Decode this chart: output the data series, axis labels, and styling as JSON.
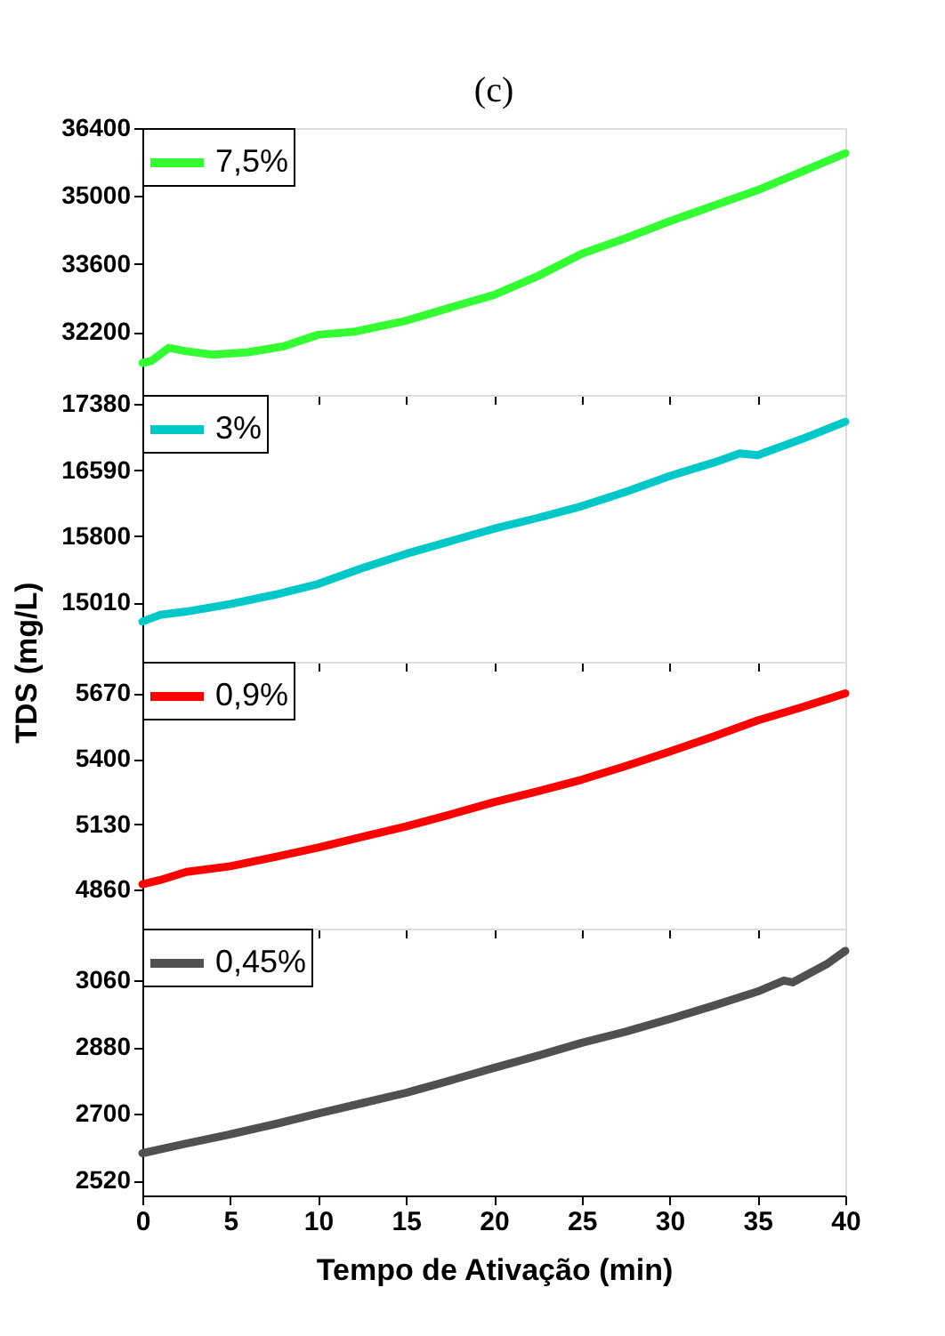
{
  "chart_data": [
    {
      "type": "line",
      "title": "(c)",
      "x": [
        0,
        0.5,
        1.5,
        2.5,
        4,
        6,
        8,
        10,
        12,
        15,
        17.5,
        20,
        22.5,
        25,
        27.5,
        30,
        32.5,
        35,
        37.5,
        40
      ],
      "xlim": [
        0,
        40
      ],
      "xticks": [
        0,
        5,
        10,
        15,
        20,
        25,
        30,
        35,
        40
      ],
      "ylim": [
        30900,
        36400
      ],
      "yticks": [
        32200,
        33600,
        35000,
        36400
      ],
      "tick_labels": "y",
      "legend": "top left",
      "grid": false,
      "series": [
        {
          "name": "7,5%",
          "color": "#33ff33",
          "values": [
            31560,
            31600,
            31870,
            31800,
            31730,
            31780,
            31900,
            32140,
            32200,
            32430,
            32700,
            32960,
            33350,
            33810,
            34130,
            34480,
            34800,
            35120,
            35500,
            35880
          ]
        }
      ]
    },
    {
      "type": "line",
      "ylabel": "TDS (mg/L)",
      "x": [
        0,
        1,
        2.5,
        5,
        7.5,
        10,
        12.5,
        15,
        17.5,
        20,
        22.5,
        25,
        27.5,
        30,
        32.5,
        34,
        35,
        37.5,
        40
      ],
      "xlim": [
        0,
        40
      ],
      "xticks": [
        0,
        5,
        10,
        15,
        20,
        25,
        30,
        35,
        40
      ],
      "ylim": [
        14300,
        17490
      ],
      "yticks": [
        15010,
        15800,
        16590,
        17380
      ],
      "tick_labels": "y",
      "legend": "top left",
      "grid": false,
      "series": [
        {
          "name": "3%",
          "color": "#00c8c8",
          "values": [
            14780,
            14860,
            14900,
            14990,
            15100,
            15230,
            15420,
            15590,
            15740,
            15890,
            16020,
            16160,
            16330,
            16520,
            16680,
            16790,
            16770,
            16960,
            17170
          ]
        }
      ]
    },
    {
      "type": "line",
      "x": [
        0,
        1,
        2.5,
        5,
        7.5,
        10,
        12.5,
        15,
        17.5,
        20,
        22.5,
        25,
        27.5,
        30,
        32.5,
        35,
        37.5,
        40
      ],
      "xlim": [
        0,
        40
      ],
      "xticks": [
        0,
        5,
        10,
        15,
        20,
        25,
        30,
        35,
        40
      ],
      "ylim": [
        4700,
        5800
      ],
      "yticks": [
        4860,
        5130,
        5400,
        5670
      ],
      "tick_labels": "y",
      "legend": "top left",
      "grid": false,
      "series": [
        {
          "name": "0,9%",
          "color": "#ff0000",
          "values": [
            4883,
            4900,
            4934,
            4957,
            4995,
            5034,
            5078,
            5121,
            5170,
            5221,
            5266,
            5314,
            5370,
            5430,
            5492,
            5558,
            5612,
            5670
          ]
        }
      ]
    },
    {
      "type": "line",
      "xlabel": "Tempo de Ativação (min)",
      "x": [
        0,
        2.5,
        5,
        7.5,
        10,
        12.5,
        15,
        17.5,
        20,
        22.5,
        25,
        27.5,
        30,
        32.5,
        35,
        36.5,
        37,
        39,
        40
      ],
      "xlim": [
        0,
        40
      ],
      "xticks": [
        0,
        5,
        10,
        15,
        20,
        25,
        30,
        35,
        40
      ],
      "ylim": [
        2480,
        3200
      ],
      "yticks": [
        2520,
        2700,
        2880,
        3060
      ],
      "legend": "top left",
      "grid": false,
      "series": [
        {
          "name": "0,45%",
          "color": "#505050",
          "values": [
            2594,
            2620,
            2645,
            2672,
            2701,
            2729,
            2757,
            2790,
            2824,
            2857,
            2892,
            2922,
            2956,
            2992,
            3030,
            3060,
            3055,
            3106,
            3140
          ]
        }
      ]
    }
  ]
}
